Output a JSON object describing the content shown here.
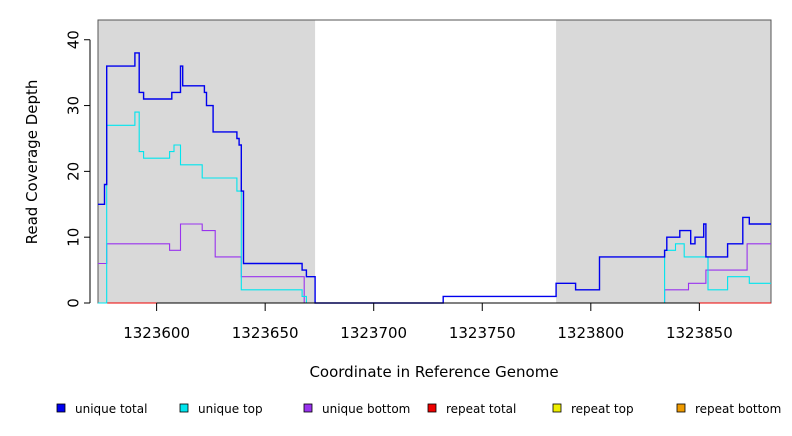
{
  "chart_data": {
    "type": "line",
    "title": "",
    "xlabel": "Coordinate in Reference Genome",
    "ylabel": "Read Coverage Depth",
    "xlim": [
      1323573,
      1323883
    ],
    "ylim": [
      0,
      43
    ],
    "x_ticks": [
      1323600,
      1323650,
      1323700,
      1323750,
      1323800,
      1323850
    ],
    "x_tick_labels": [
      "1323600",
      "1323650",
      "1323700",
      "1323750",
      "1323800",
      "1323850"
    ],
    "y_ticks": [
      0,
      10,
      20,
      30,
      40
    ],
    "y_tick_labels": [
      "0",
      "10",
      "20",
      "30",
      "40"
    ],
    "shaded_regions": [
      [
        1323573,
        1323673
      ],
      [
        1323784,
        1323883
      ]
    ],
    "grid": false,
    "legend_position": "bottom",
    "series": [
      {
        "name": "unique total",
        "color": "#0000ee",
        "x": [
          1323573,
          1323576,
          1323577,
          1323590,
          1323592,
          1323594,
          1323597,
          1323607,
          1323611,
          1323612,
          1323622,
          1323623,
          1323626,
          1323637,
          1323638,
          1323639,
          1323640,
          1323667,
          1323669,
          1323672,
          1323673,
          1323732,
          1323784,
          1323793,
          1323804,
          1323834,
          1323835,
          1323841,
          1323846,
          1323848,
          1323852,
          1323853,
          1323854,
          1323863,
          1323867,
          1323870,
          1323873,
          1323883
        ],
        "y": [
          15,
          18,
          36,
          38,
          32,
          31,
          31,
          32,
          36,
          33,
          32,
          30,
          26,
          25,
          24,
          17,
          6,
          5,
          4,
          4,
          0,
          1,
          3,
          2,
          7,
          8,
          10,
          11,
          9,
          10,
          12,
          7,
          7,
          9,
          9,
          13,
          12,
          12
        ]
      },
      {
        "name": "unique top",
        "color": "#00e5ee",
        "x": [
          1323573,
          1323577,
          1323590,
          1323592,
          1323594,
          1323606,
          1323608,
          1323611,
          1323617,
          1323621,
          1323633,
          1323637,
          1323639,
          1323667,
          1323669,
          1323673,
          1323834,
          1323837,
          1323839,
          1323843,
          1323852,
          1323854,
          1323863,
          1323867,
          1323873,
          1323883
        ],
        "y": [
          0,
          27,
          29,
          23,
          22,
          23,
          24,
          21,
          21,
          19,
          19,
          17,
          2,
          1,
          0,
          0,
          8,
          8,
          9,
          7,
          7,
          2,
          4,
          4,
          3,
          3
        ],
        "note_hidden": ""
      },
      {
        "name": "unique bottom",
        "color": "#9933ee",
        "x": [
          1323573,
          1323577,
          1323594,
          1323606,
          1323611,
          1323617,
          1323621,
          1323627,
          1323637,
          1323639,
          1323663,
          1323667,
          1323668,
          1323673,
          1323834,
          1323845,
          1323848,
          1323852,
          1323853,
          1323854,
          1323867,
          1323872,
          1323883
        ],
        "y": [
          6,
          9,
          9,
          8,
          12,
          12,
          11,
          7,
          7,
          4,
          4,
          4,
          0,
          0,
          2,
          3,
          3,
          3,
          5,
          5,
          5,
          9,
          9
        ]
      },
      {
        "name": "repeat total",
        "color": "#ee0000",
        "x": [
          1323573,
          1323883
        ],
        "y": [
          0,
          0
        ]
      },
      {
        "name": "repeat top",
        "color": "#eeee00",
        "x": [
          1323573,
          1323883
        ],
        "y": [
          0,
          0
        ]
      },
      {
        "name": "repeat bottom",
        "color": "#ee9a00",
        "x": [
          1323573,
          1323883
        ],
        "y": [
          0,
          0
        ]
      }
    ]
  }
}
